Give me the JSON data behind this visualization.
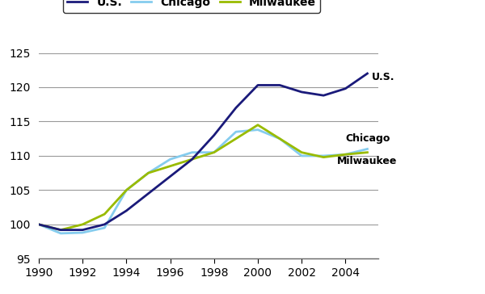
{
  "years": [
    1990,
    1991,
    1992,
    1993,
    1994,
    1995,
    1996,
    1997,
    1998,
    1999,
    2000,
    2001,
    2002,
    2003,
    2004,
    2005
  ],
  "us": [
    100,
    99.2,
    99.2,
    100.0,
    102.0,
    104.5,
    107.0,
    109.5,
    113.0,
    117.0,
    120.3,
    120.3,
    119.3,
    118.8,
    119.8,
    122.0
  ],
  "chicago": [
    100,
    98.7,
    98.8,
    99.5,
    105.0,
    107.5,
    109.5,
    110.5,
    110.5,
    113.5,
    113.8,
    112.5,
    110.0,
    110.0,
    110.2,
    111.0
  ],
  "milwaukee": [
    100,
    99.2,
    100.0,
    101.5,
    105.0,
    107.5,
    108.5,
    109.5,
    110.5,
    112.5,
    114.5,
    112.5,
    110.5,
    109.8,
    110.2,
    110.5
  ],
  "us_color": "#1a1a7a",
  "chicago_color": "#85ccee",
  "milwaukee_color": "#99bb00",
  "background_color": "#ffffff",
  "grid_color": "#999999",
  "xlim_min": 1990,
  "xlim_max": 2005.5,
  "ylim_min": 95,
  "ylim_max": 125,
  "yticks": [
    95,
    100,
    105,
    110,
    115,
    120,
    125
  ],
  "xticks": [
    1990,
    1992,
    1994,
    1996,
    1998,
    2000,
    2002,
    2004
  ],
  "linewidth": 2.0,
  "legend_labels": [
    "U.S.",
    "Chicago",
    "Milwaukee"
  ],
  "ann_us_x": 2005.2,
  "ann_us_y": 121.5,
  "ann_chicago_x": 2004.0,
  "ann_chicago_y": 112.5,
  "ann_milwaukee_x": 2003.6,
  "ann_milwaukee_y": 109.2,
  "tick_fontsize": 10,
  "ann_fontsize": 9,
  "legend_fontsize": 10
}
